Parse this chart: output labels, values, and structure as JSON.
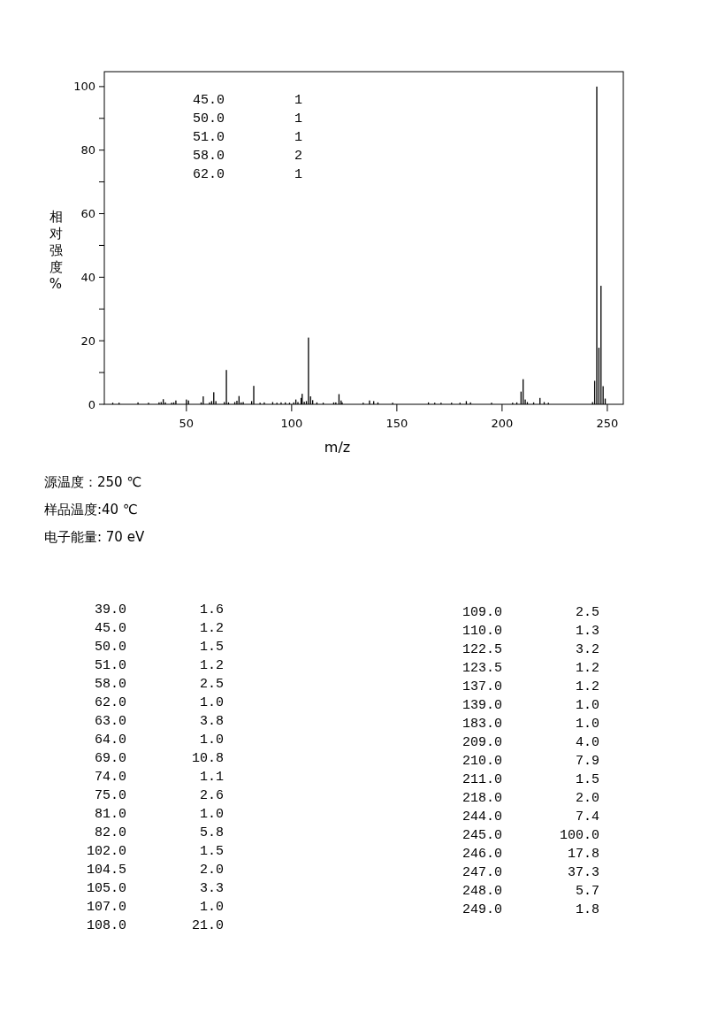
{
  "chart_data": [
    {
      "type": "bar",
      "xlabel": "m/z",
      "ylabel": "相对强度%",
      "color": "#000000",
      "x": [
        15,
        18,
        27,
        32,
        37,
        38,
        39,
        40,
        43,
        44,
        45,
        50,
        51,
        57,
        58,
        61,
        62,
        63,
        64,
        68,
        69,
        70,
        73,
        74,
        75,
        76,
        77,
        81,
        82,
        85,
        87,
        91,
        93,
        95,
        97,
        99,
        101,
        102,
        103,
        104.5,
        105,
        106,
        107,
        108,
        109,
        110,
        112,
        115,
        120,
        121,
        122.5,
        123.5,
        124,
        134,
        137,
        139,
        141,
        148,
        165,
        168,
        171,
        176,
        180,
        183,
        185,
        195,
        205,
        207,
        209,
        210,
        211,
        212,
        215,
        218,
        220,
        222,
        243,
        244,
        245,
        246,
        247,
        248,
        249
      ],
      "values": [
        0.5,
        0.5,
        0.6,
        0.5,
        0.6,
        0.7,
        1.6,
        0.6,
        0.5,
        0.6,
        1.2,
        1.5,
        1.2,
        0.6,
        2.5,
        0.6,
        1.0,
        3.8,
        1.0,
        0.7,
        10.8,
        0.6,
        0.7,
        1.1,
        2.6,
        0.6,
        0.7,
        1.0,
        5.8,
        0.5,
        0.6,
        0.7,
        0.5,
        0.6,
        0.6,
        0.5,
        0.6,
        1.5,
        0.7,
        2.0,
        3.3,
        0.8,
        1.0,
        21.0,
        2.5,
        1.3,
        0.6,
        0.5,
        0.6,
        0.6,
        3.2,
        1.2,
        0.6,
        0.5,
        1.2,
        1.0,
        0.6,
        0.5,
        0.6,
        0.5,
        0.5,
        0.5,
        0.5,
        1.0,
        0.6,
        0.5,
        0.5,
        0.6,
        4.0,
        7.9,
        1.5,
        0.7,
        0.6,
        2.0,
        0.7,
        0.5,
        0.7,
        7.4,
        100.0,
        17.8,
        37.3,
        5.7,
        1.8
      ],
      "xlim": [
        11,
        257.6
      ],
      "xticks": [
        50,
        100,
        150,
        200,
        250
      ],
      "ylim": [
        0,
        104.7
      ],
      "yticks": [
        0,
        {
          "value": 10,
          "label": null
        },
        20,
        {
          "value": 30,
          "label": null
        },
        40,
        {
          "value": 50,
          "label": null
        },
        60,
        {
          "value": 70,
          "label": null
        },
        80,
        {
          "value": 90,
          "label": null
        },
        100
      ],
      "grid": false,
      "annotations": [
        "源温度：250 ℃",
        "样品温度:40 ℃",
        "电子能量: 70 eV",
        "45.0 1",
        "50.0 1",
        "51.0 1",
        "58.0 2",
        "62.0 1"
      ]
    },
    {
      "type": "other",
      "categories": [
        "39.0",
        "45.0",
        "50.0",
        "51.0",
        "58.0",
        "62.0",
        "63.0",
        "64.0",
        "69.0",
        "74.0",
        "75.0",
        "81.0",
        "82.0",
        "102.0",
        "104.5",
        "105.0",
        "107.0",
        "108.0",
        "109.0",
        "110.0",
        "122.5",
        "123.5",
        "137.0",
        "139.0",
        "183.0",
        "209.0",
        "210.0",
        "211.0",
        "218.0",
        "244.0",
        "245.0",
        "246.0",
        "247.0",
        "248.0",
        "249.0"
      ],
      "value_labels": [
        "1.6",
        "1.2",
        "1.5",
        "1.2",
        "2.5",
        "1.0",
        "3.8",
        "1.0",
        "10.8",
        "1.1",
        "2.6",
        "1.0",
        "5.8",
        "1.5",
        "2.0",
        "3.3",
        "1.0",
        "21.0",
        "2.5",
        "1.3",
        "3.2",
        "1.2",
        "1.2",
        "1.0",
        "1.0",
        "4.0",
        "7.9",
        "1.5",
        "2.0",
        "7.4",
        "100.0",
        "17.8",
        "37.3",
        "5.7",
        "1.8"
      ]
    }
  ]
}
